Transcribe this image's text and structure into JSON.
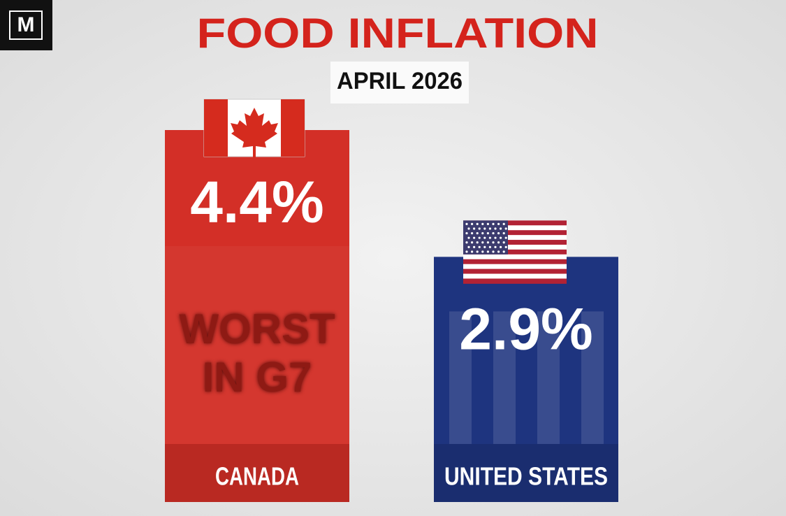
{
  "logo": "M",
  "chart_data": {
    "type": "bar",
    "title": "FOOD INFLATION",
    "subtitle": "APRIL 2026",
    "categories": [
      "CANADA",
      "UNITED STATES"
    ],
    "values": [
      4.4,
      2.9
    ],
    "value_labels": [
      "4.4%",
      "2.9%"
    ],
    "colors": [
      "#d32f27",
      "#1e347f"
    ],
    "annotation": "WORST IN G7"
  }
}
